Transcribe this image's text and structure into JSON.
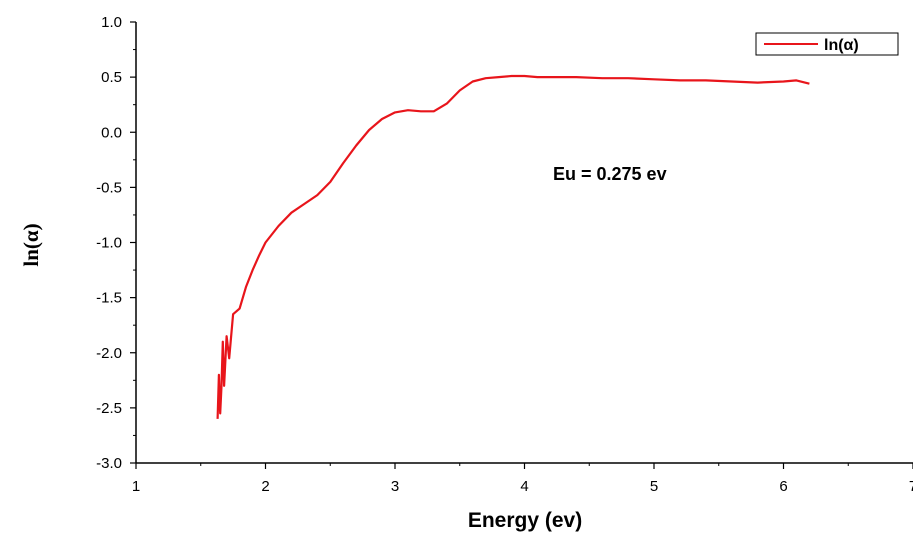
{
  "chart_data": {
    "type": "line",
    "xlabel": "Energy (ev)",
    "ylabel": "ln(α)",
    "xlim": [
      1,
      7
    ],
    "ylim": [
      -3.0,
      1.0
    ],
    "x_ticks": [
      "1",
      "2",
      "3",
      "4",
      "5",
      "6",
      "7"
    ],
    "y_ticks": [
      "1.0",
      "0.5",
      "0.0",
      "-0.5",
      "-1.0",
      "-1.5",
      "-2.0",
      "-2.5",
      "-3.0"
    ],
    "legend_position": "top-right",
    "grid": false,
    "annotation": "Eu = 0.275 ev",
    "series": [
      {
        "name": "ln(α)",
        "color": "#e8151b",
        "x": [
          1.63,
          1.64,
          1.65,
          1.66,
          1.67,
          1.68,
          1.7,
          1.72,
          1.75,
          1.8,
          1.85,
          1.9,
          1.95,
          2.0,
          2.1,
          2.2,
          2.3,
          2.4,
          2.5,
          2.6,
          2.7,
          2.8,
          2.9,
          3.0,
          3.1,
          3.2,
          3.3,
          3.4,
          3.5,
          3.6,
          3.7,
          3.8,
          3.9,
          4.0,
          4.1,
          4.2,
          4.4,
          4.6,
          4.8,
          5.0,
          5.2,
          5.4,
          5.6,
          5.8,
          6.0,
          6.1,
          6.2
        ],
        "y": [
          -2.6,
          -2.2,
          -2.55,
          -2.3,
          -1.9,
          -2.3,
          -1.85,
          -2.05,
          -1.65,
          -1.6,
          -1.4,
          -1.25,
          -1.12,
          -1.0,
          -0.85,
          -0.73,
          -0.65,
          -0.57,
          -0.45,
          -0.28,
          -0.12,
          0.02,
          0.12,
          0.18,
          0.2,
          0.19,
          0.19,
          0.26,
          0.38,
          0.46,
          0.49,
          0.5,
          0.51,
          0.51,
          0.5,
          0.5,
          0.5,
          0.49,
          0.49,
          0.48,
          0.47,
          0.47,
          0.46,
          0.45,
          0.46,
          0.47,
          0.44
        ]
      }
    ]
  }
}
